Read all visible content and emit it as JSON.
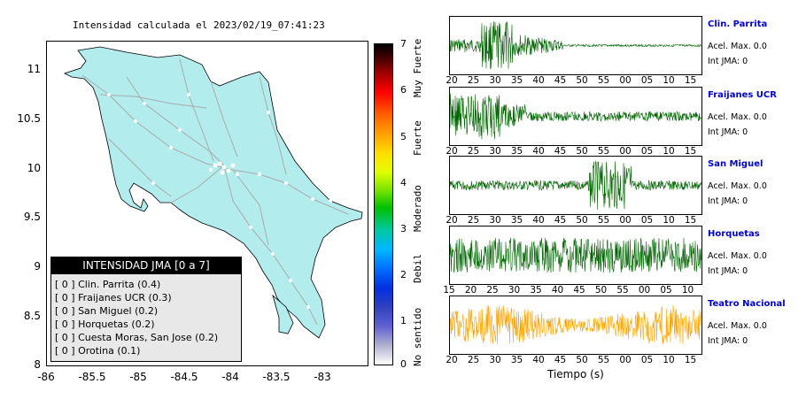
{
  "map": {
    "title": "Intensidad calculada el 2023/02/19_07:41:23",
    "y_ticks": [
      "11",
      "10.5",
      "10",
      "9.5",
      "9",
      "8.5",
      "8"
    ],
    "x_ticks": [
      "-86",
      "-85.5",
      "-85",
      "-84.5",
      "-84",
      "-83.5",
      "-83"
    ],
    "land_color": "#b3ecec",
    "road_color": "#aaaaaa"
  },
  "legend": {
    "title": "INTENSIDAD JMA [0 a 7]",
    "items": [
      "[ 0 ]  Clin. Parrita (0.4)",
      "[ 0 ]  Fraijanes UCR (0.3)",
      "[ 0 ]  San Miguel (0.2)",
      "[ 0 ]  Horquetas (0.2)",
      "[ 0 ]  Cuesta Moras, San Jose (0.2)",
      "[ 0 ]  Orotina (0.1)"
    ]
  },
  "colorbar": {
    "ticks": [
      "7",
      "6",
      "5",
      "4",
      "3",
      "2",
      "1",
      "0"
    ],
    "words": [
      "Muy Fuerte",
      "Fuerte",
      "Moderado",
      "Debil",
      "No sentido"
    ]
  },
  "waveforms": [
    {
      "name": "Clin. Parrita",
      "accel": "Acel. Max. 0.0",
      "int": "Int JMA: 0",
      "color": "#006400",
      "ticks": [
        "20",
        "25",
        "30",
        "35",
        "40",
        "45",
        "50",
        "55",
        "00",
        "05",
        "10",
        "15"
      ]
    },
    {
      "name": "Fraijanes UCR",
      "accel": "Acel. Max. 0.0",
      "int": "Int JMA: 0",
      "color": "#006400",
      "ticks": [
        "20",
        "25",
        "30",
        "35",
        "40",
        "45",
        "50",
        "55",
        "00",
        "05",
        "10",
        "15"
      ]
    },
    {
      "name": "San Miguel",
      "accel": "Acel. Max. 0.0",
      "int": "Int JMA: 0",
      "color": "#006400",
      "ticks": [
        "20",
        "25",
        "30",
        "35",
        "40",
        "45",
        "50",
        "55",
        "00",
        "05",
        "10",
        "15"
      ]
    },
    {
      "name": "Horquetas",
      "accel": "Acel. Max. 0.0",
      "int": "Int JMA: 0",
      "color": "#006400",
      "ticks": [
        "15",
        "20",
        "25",
        "30",
        "35",
        "40",
        "45",
        "50",
        "55",
        "00",
        "05",
        "10"
      ]
    },
    {
      "name": "Teatro Nacional",
      "accel": "Acel. Max. 0.0",
      "int": "Int JMA: 0",
      "color": "#ffa500",
      "ticks": [
        "20",
        "25",
        "30",
        "35",
        "40",
        "45",
        "50",
        "55",
        "00",
        "05",
        "10",
        "15"
      ]
    }
  ],
  "time_label": "Tiempo (s)"
}
